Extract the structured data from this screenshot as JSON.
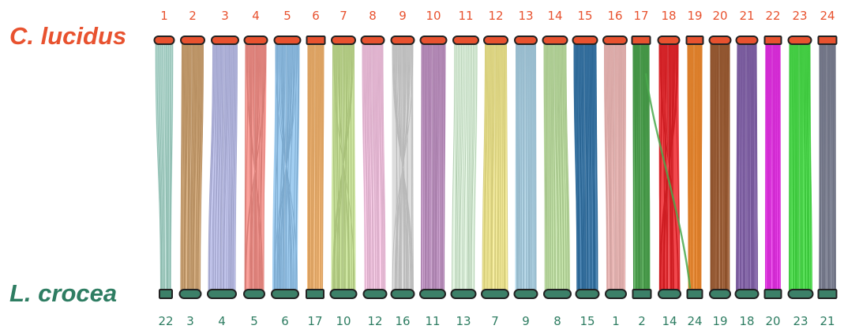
{
  "species": {
    "top": {
      "name": "C. lucidus",
      "color": "#e8522f"
    },
    "bottom": {
      "name": "L. crocea",
      "color": "#2e7d62"
    }
  },
  "colors": {
    "top_bar_fill": "#e8522f",
    "bottom_bar_fill": "#3c8068",
    "bar_stroke": "#222222"
  },
  "top_chromosomes": [
    "1",
    "2",
    "3",
    "4",
    "5",
    "6",
    "7",
    "8",
    "9",
    "10",
    "11",
    "12",
    "13",
    "14",
    "15",
    "16",
    "17",
    "18",
    "19",
    "20",
    "21",
    "22",
    "23",
    "24"
  ],
  "bottom_chromosomes": [
    "22",
    "3",
    "4",
    "5",
    "6",
    "17",
    "10",
    "12",
    "16",
    "11",
    "13",
    "7",
    "9",
    "8",
    "15",
    "1",
    "2",
    "14",
    "24",
    "19",
    "18",
    "20",
    "23",
    "21"
  ],
  "synteny_blocks": [
    {
      "top": "1",
      "bottom": "22",
      "color": "#9fd6c8",
      "pattern": "shift",
      "dense": false
    },
    {
      "top": "2",
      "bottom": "3",
      "color": "#d2a36e",
      "pattern": "straight",
      "dense": true
    },
    {
      "top": "3",
      "bottom": "4",
      "color": "#b9bdeb",
      "pattern": "straight",
      "dense": true
    },
    {
      "top": "4",
      "bottom": "5",
      "color": "#f98e86",
      "pattern": "cross",
      "dense": true
    },
    {
      "top": "5",
      "bottom": "6",
      "color": "#8ec3ee",
      "pattern": "cross",
      "dense": true
    },
    {
      "top": "6",
      "bottom": "17",
      "color": "#fcb86e",
      "pattern": "straight",
      "dense": true
    },
    {
      "top": "7",
      "bottom": "10",
      "color": "#c3e08d",
      "pattern": "cross",
      "dense": true
    },
    {
      "top": "8",
      "bottom": "12",
      "color": "#fcc8e8",
      "pattern": "straight",
      "dense": true
    },
    {
      "top": "9",
      "bottom": "16",
      "color": "#d6d6d6",
      "pattern": "cross",
      "dense": true
    },
    {
      "top": "10",
      "bottom": "11",
      "color": "#c190c4",
      "pattern": "straight",
      "dense": true
    },
    {
      "top": "11",
      "bottom": "13",
      "color": "#cdeccc",
      "pattern": "straight",
      "dense": false
    },
    {
      "top": "12",
      "bottom": "7",
      "color": "#f6ec8c",
      "pattern": "straight",
      "dense": true
    },
    {
      "top": "13",
      "bottom": "9",
      "color": "#acd5ea",
      "pattern": "straight",
      "dense": true
    },
    {
      "top": "14",
      "bottom": "8",
      "color": "#bfe3a0",
      "pattern": "straight",
      "dense": true
    },
    {
      "top": "15",
      "bottom": "15",
      "color": "#2f73aa",
      "pattern": "straight",
      "dense": true
    },
    {
      "top": "16",
      "bottom": "1",
      "color": "#f6bcba",
      "pattern": "straight",
      "dense": true
    },
    {
      "top": "17",
      "bottom": "2",
      "color": "#4aa84c",
      "pattern": "straight",
      "dense": true
    },
    {
      "top": "18",
      "bottom": "14",
      "color": "#ee2026",
      "pattern": "cross",
      "dense": true
    },
    {
      "top": "19",
      "bottom": "24",
      "color": "#fc8f2e",
      "pattern": "straight",
      "dense": true
    },
    {
      "top": "20",
      "bottom": "19",
      "color": "#a25c30",
      "pattern": "straight",
      "dense": true
    },
    {
      "top": "21",
      "bottom": "18",
      "color": "#8562af",
      "pattern": "straight",
      "dense": true
    },
    {
      "top": "22",
      "bottom": "20",
      "color": "#f22ff2",
      "pattern": "straight",
      "dense": true
    },
    {
      "top": "23",
      "bottom": "23",
      "color": "#44e444",
      "pattern": "straight",
      "dense": true
    },
    {
      "top": "24",
      "bottom": "21",
      "color": "#7f8498",
      "pattern": "straight",
      "dense": true
    }
  ],
  "inter_chromosomal_links": [
    {
      "from_top": "17",
      "to_bottom": "24",
      "color": "#4aa84c"
    }
  ]
}
